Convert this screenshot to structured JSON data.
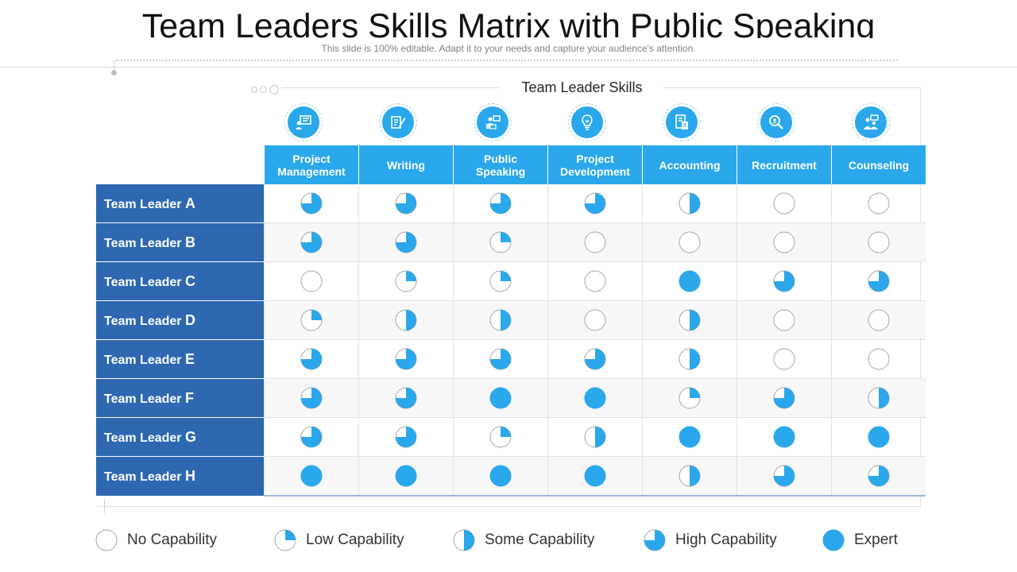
{
  "title": "Team Leaders Skills Matrix with Public Speaking",
  "subtitle": "This slide is 100% editable. Adapt it to your needs and capture your audience's attention.",
  "group_title": "Team Leader Skills",
  "skills": [
    {
      "label": "Project Management",
      "line1": "Project",
      "line2": "Management",
      "icon": "project-management-icon"
    },
    {
      "label": "Writing",
      "line1": "Writing",
      "line2": "",
      "icon": "writing-icon"
    },
    {
      "label": "Public Speaking",
      "line1": "Public",
      "line2": "Speaking",
      "icon": "public-speaking-icon"
    },
    {
      "label": "Project Development",
      "line1": "Project",
      "line2": "Development",
      "icon": "lightbulb-icon"
    },
    {
      "label": "Accounting",
      "line1": "Accounting",
      "line2": "",
      "icon": "accounting-icon"
    },
    {
      "label": "Recruitment",
      "line1": "Recruitment",
      "line2": "",
      "icon": "recruitment-icon"
    },
    {
      "label": "Counseling",
      "line1": "Counseling",
      "line2": "",
      "icon": "counseling-icon"
    }
  ],
  "rows": [
    {
      "prefix": "Team Leader",
      "letter": "A",
      "levels": [
        3,
        3,
        3,
        3,
        2,
        0,
        0
      ]
    },
    {
      "prefix": "Team Leader",
      "letter": "B",
      "levels": [
        3,
        3,
        1,
        0,
        0,
        0,
        0
      ]
    },
    {
      "prefix": "Team Leader",
      "letter": "C",
      "levels": [
        0,
        1,
        1,
        0,
        4,
        3,
        3
      ]
    },
    {
      "prefix": "Team Leader",
      "letter": "D",
      "levels": [
        1,
        2,
        2,
        0,
        2,
        0,
        0
      ]
    },
    {
      "prefix": "Team Leader",
      "letter": "E",
      "levels": [
        3,
        3,
        3,
        3,
        2,
        0,
        0
      ]
    },
    {
      "prefix": "Team Leader",
      "letter": "F",
      "levels": [
        3,
        3,
        4,
        4,
        1,
        3,
        2
      ]
    },
    {
      "prefix": "Team Leader",
      "letter": "G",
      "levels": [
        3,
        3,
        1,
        2,
        4,
        4,
        4
      ]
    },
    {
      "prefix": "Team Leader",
      "letter": "H",
      "levels": [
        4,
        4,
        4,
        4,
        2,
        3,
        3
      ]
    }
  ],
  "legend": [
    {
      "label": "No Capability",
      "level": 0
    },
    {
      "label": "Low Capability",
      "level": 1
    },
    {
      "label": "Some Capability",
      "level": 2
    },
    {
      "label": "High Capability",
      "level": 3
    },
    {
      "label": "Expert",
      "level": 4
    }
  ],
  "colors": {
    "accent": "#2aa8eb",
    "row_header": "#2d68b0",
    "circle_outline": "#a6a6a6"
  }
}
